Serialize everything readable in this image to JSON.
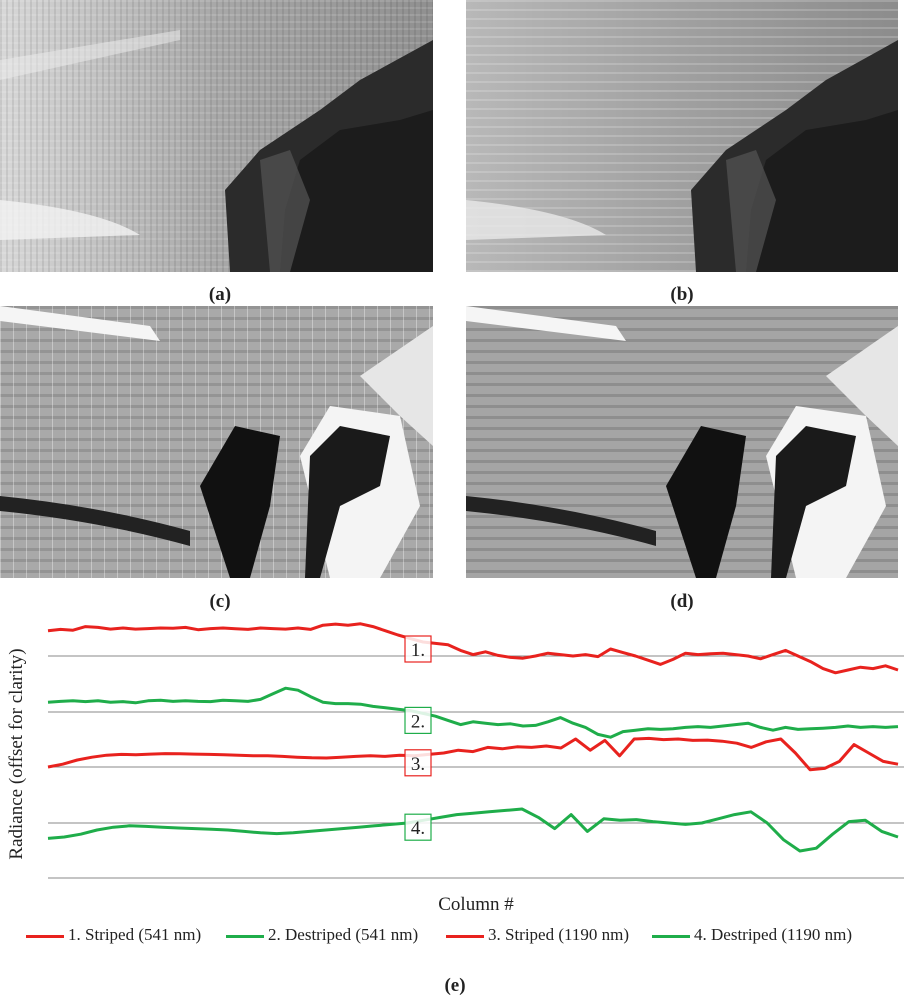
{
  "figure": {
    "panels": [
      {
        "id": "a",
        "label": "(a)"
      },
      {
        "id": "b",
        "label": "(b)"
      },
      {
        "id": "c",
        "label": "(c)"
      },
      {
        "id": "d",
        "label": "(d)"
      }
    ],
    "chart_label": "(e)"
  },
  "chart_data": {
    "type": "line",
    "xlabel": "Column #",
    "ylabel": "Radiance (offset for clarity)",
    "grid": true,
    "legend_position": "bottom",
    "annotations": [
      {
        "text": "1.",
        "series": 0
      },
      {
        "text": "2.",
        "series": 1
      },
      {
        "text": "3.",
        "series": 2
      },
      {
        "text": "4.",
        "series": 3
      }
    ],
    "series": [
      {
        "name": "1. Striped (541 nm)",
        "color": "#e8221e",
        "values": [
          0.9,
          0.95,
          0.92,
          1.05,
          1.02,
          0.96,
          1.0,
          0.96,
          0.98,
          1.0,
          0.99,
          1.02,
          0.94,
          0.98,
          1.0,
          0.97,
          0.95,
          1.0,
          0.98,
          0.96,
          1.0,
          0.95,
          1.1,
          1.14,
          1.1,
          1.15,
          1.05,
          0.9,
          0.75,
          0.62,
          0.5,
          0.45,
          0.4,
          0.2,
          0.05,
          0.15,
          0.02,
          -0.05,
          -0.08,
          0.0,
          0.1,
          0.05,
          0.0,
          0.05,
          -0.02,
          0.25,
          0.12,
          0.0,
          -0.15,
          -0.3,
          -0.12,
          0.1,
          0.05,
          0.08,
          0.1,
          0.05,
          0.0,
          -0.1,
          0.05,
          0.2,
          0.0,
          -0.2,
          -0.45,
          -0.6,
          -0.5,
          -0.4,
          -0.45,
          -0.35,
          -0.5
        ]
      },
      {
        "name": "2. Destriped (541 nm)",
        "color": "#1fad4a",
        "values": [
          0.35,
          0.38,
          0.4,
          0.37,
          0.4,
          0.35,
          0.37,
          0.33,
          0.4,
          0.42,
          0.38,
          0.4,
          0.38,
          0.37,
          0.42,
          0.4,
          0.38,
          0.45,
          0.65,
          0.85,
          0.78,
          0.55,
          0.35,
          0.3,
          0.3,
          0.28,
          0.2,
          0.15,
          0.1,
          0.05,
          -0.05,
          -0.15,
          -0.3,
          -0.45,
          -0.35,
          -0.4,
          -0.45,
          -0.42,
          -0.5,
          -0.48,
          -0.35,
          -0.2,
          -0.4,
          -0.55,
          -0.8,
          -0.9,
          -0.7,
          -0.65,
          -0.6,
          -0.62,
          -0.6,
          -0.55,
          -0.52,
          -0.55,
          -0.5,
          -0.45,
          -0.4,
          -0.55,
          -0.65,
          -0.55,
          -0.62,
          -0.6,
          -0.58,
          -0.55,
          -0.5,
          -0.55,
          -0.52,
          -0.55,
          -0.52
        ]
      },
      {
        "name": "3. Striped (1190 nm)",
        "color": "#e8221e",
        "values": [
          0.0,
          0.1,
          0.25,
          0.35,
          0.42,
          0.45,
          0.44,
          0.46,
          0.48,
          0.47,
          0.46,
          0.45,
          0.44,
          0.42,
          0.4,
          0.4,
          0.38,
          0.35,
          0.33,
          0.32,
          0.35,
          0.38,
          0.4,
          0.38,
          0.42,
          0.4,
          0.45,
          0.5,
          0.6,
          0.55,
          0.7,
          0.65,
          0.72,
          0.7,
          0.75,
          0.68,
          1.0,
          0.6,
          0.95,
          0.4,
          1.0,
          1.02,
          0.98,
          1.0,
          0.95,
          0.96,
          0.92,
          0.85,
          0.7,
          0.9,
          1.0,
          0.5,
          -0.1,
          -0.05,
          0.2,
          0.8,
          0.5,
          0.2,
          0.1
        ]
      },
      {
        "name": "4. Destriped (1190 nm)",
        "color": "#1fad4a",
        "values": [
          -0.55,
          -0.5,
          -0.4,
          -0.25,
          -0.15,
          -0.1,
          -0.12,
          -0.15,
          -0.18,
          -0.2,
          -0.22,
          -0.25,
          -0.3,
          -0.35,
          -0.38,
          -0.35,
          -0.3,
          -0.25,
          -0.2,
          -0.15,
          -0.1,
          -0.05,
          0.0,
          0.1,
          0.2,
          0.3,
          0.35,
          0.4,
          0.45,
          0.5,
          0.2,
          -0.2,
          0.3,
          -0.3,
          0.15,
          0.1,
          0.12,
          0.05,
          0.0,
          -0.05,
          0.0,
          0.15,
          0.3,
          0.4,
          0.0,
          -0.6,
          -1.0,
          -0.9,
          -0.4,
          0.05,
          0.1,
          -0.3,
          -0.5
        ]
      }
    ]
  }
}
